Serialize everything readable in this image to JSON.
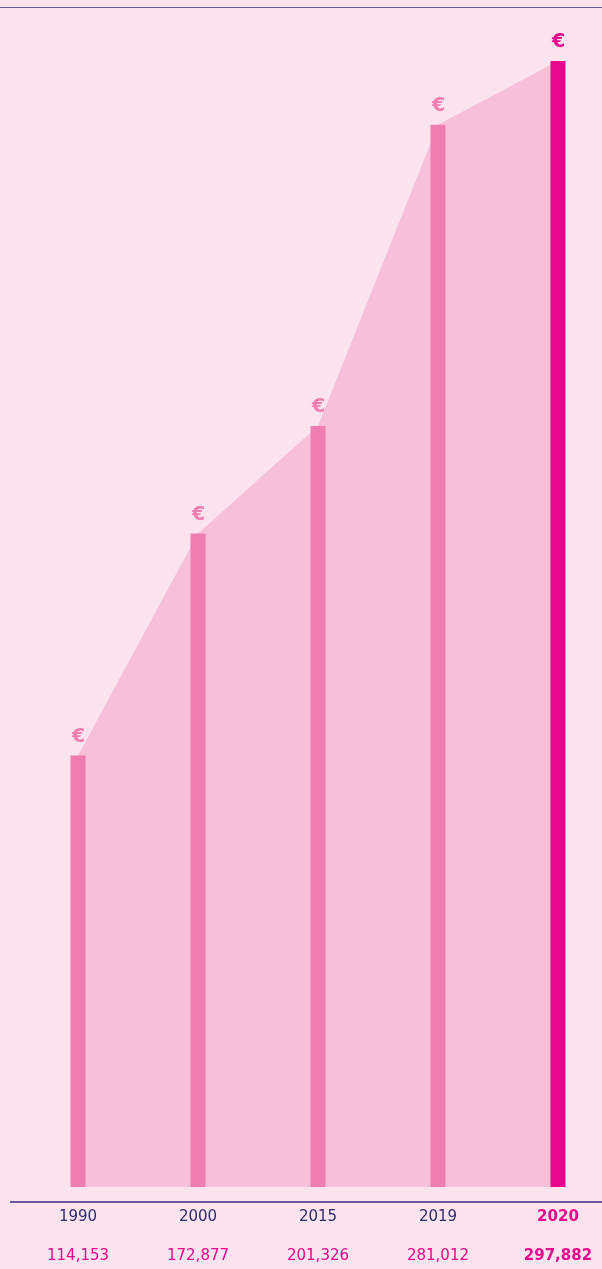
{
  "chart_data": {
    "type": "bar",
    "categories": [
      "1990",
      "2000",
      "2015",
      "2019",
      "2020"
    ],
    "series": [
      {
        "type": "area",
        "color": "#f7c0d8",
        "values": [
          114153,
          172877,
          201326,
          281012,
          297882
        ]
      },
      {
        "colors": [
          "#f07daf",
          "#f07daf",
          "#f07daf",
          "#f07daf",
          "#e8068c"
        ],
        "values": [
          114153,
          172877,
          201326,
          281012,
          297882
        ],
        "value_labels": [
          "114,153",
          "172,877",
          "201,326",
          "281,012",
          "297,882"
        ]
      }
    ],
    "annotations": [
      {
        "text": "€",
        "x": "1990",
        "y": 114153
      },
      {
        "text": "€",
        "x": "2000",
        "y": 172877
      },
      {
        "text": "€",
        "x": "2015",
        "y": 201326
      },
      {
        "text": "€",
        "x": "2019",
        "y": 281012
      },
      {
        "text": "€",
        "x": "2020",
        "y": 297882
      }
    ]
  }
}
